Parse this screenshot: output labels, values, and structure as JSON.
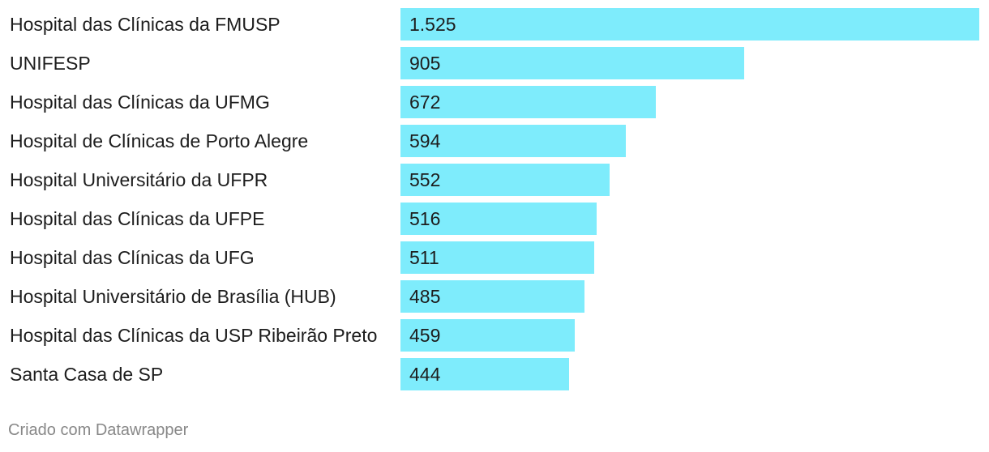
{
  "chart_data": {
    "type": "bar",
    "orientation": "horizontal",
    "categories": [
      "Hospital das Clínicas da FMUSP",
      "UNIFESP",
      "Hospital das Clínicas da UFMG",
      "Hospital de Clínicas de Porto Alegre",
      "Hospital Universitário da UFPR",
      "Hospital das Clínicas da UFPE",
      "Hospital das Clínicas da UFG",
      "Hospital Universitário de Brasília (HUB)",
      "Hospital das Clínicas da USP Ribeirão Preto",
      "Santa Casa de SP"
    ],
    "values": [
      1525,
      905,
      672,
      594,
      552,
      516,
      511,
      485,
      459,
      444
    ],
    "value_labels": [
      "1.525",
      "905",
      "672",
      "594",
      "552",
      "516",
      "511",
      "485",
      "459",
      "444"
    ],
    "xlim": [
      0,
      1525
    ],
    "bar_color": "#7eecfc",
    "grid": false,
    "legend": "none"
  },
  "footer": {
    "credit": "Criado com Datawrapper"
  }
}
